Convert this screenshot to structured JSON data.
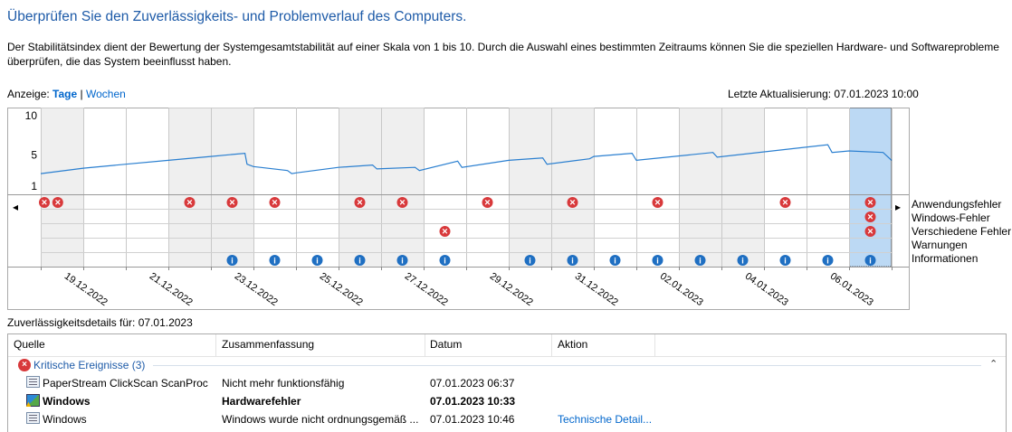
{
  "page": {
    "title": "Überprüfen Sie den Zuverlässigkeits- und Problemverlauf des Computers.",
    "description": "Der Stabilitätsindex dient der Bewertung der Systemgesamtstabilität auf einer Skala von 1 bis 10. Durch die Auswahl eines bestimmten Zeitraums können Sie die speziellen Hardware- und Softwareprobleme überprüfen, die das System beeinflusst haben."
  },
  "view": {
    "label": "Anzeige:",
    "days": "Tage",
    "separator": "|",
    "weeks": "Wochen",
    "last_update": "Letzte Aktualisierung: 07.01.2023 10:00"
  },
  "chart_data": {
    "type": "line",
    "title": "",
    "ylim": [
      1,
      10
    ],
    "y_ticks": [
      "10",
      "5",
      "1"
    ],
    "x_labels": [
      "19.12.2022",
      "21.12.2022",
      "23.12.2022",
      "25.12.2022",
      "27.12.2022",
      "29.12.2022",
      "31.12.2022",
      "02.01.2023",
      "04.01.2023",
      "06.01.2023"
    ],
    "days": 20,
    "selected_day_index": 19,
    "stability_index": [
      [
        0,
        2.6
      ],
      [
        1,
        3.3
      ],
      [
        2,
        3.8
      ],
      [
        3,
        4.3
      ],
      [
        4,
        4.8
      ],
      [
        4.8,
        5.2
      ],
      [
        4.85,
        3.8
      ],
      [
        5,
        3.5
      ],
      [
        5.8,
        3.0
      ],
      [
        5.9,
        2.6
      ],
      [
        6,
        2.7
      ],
      [
        7,
        3.4
      ],
      [
        7.8,
        3.7
      ],
      [
        7.9,
        3.2
      ],
      [
        8.8,
        3.4
      ],
      [
        8.9,
        3.0
      ],
      [
        9.8,
        4.2
      ],
      [
        9.9,
        3.4
      ],
      [
        11,
        4.3
      ],
      [
        11.8,
        4.6
      ],
      [
        11.9,
        3.8
      ],
      [
        12.9,
        4.5
      ],
      [
        13,
        4.8
      ],
      [
        13.9,
        5.2
      ],
      [
        14,
        4.3
      ],
      [
        15.8,
        5.3
      ],
      [
        15.9,
        4.7
      ],
      [
        18.5,
        6.3
      ],
      [
        18.6,
        5.3
      ],
      [
        19,
        5.5
      ],
      [
        19.8,
        5.3
      ],
      [
        20,
        4.3
      ]
    ],
    "rows": [
      "Anwendungsfehler",
      "Windows-Fehler",
      "Verschiedene Fehler",
      "Warnungen",
      "Informationen"
    ],
    "events": {
      "Anwendungsfehler": [
        0,
        0.4,
        3.5,
        4.5,
        5.5,
        7.5,
        8.5,
        10.5,
        12.5,
        14.5,
        17.5,
        19.5
      ],
      "Windows-Fehler": [
        19.5
      ],
      "Verschiedene Fehler": [
        9.5,
        19.5
      ],
      "Warnungen": [],
      "Informationen": [
        4.5,
        5.5,
        6.5,
        7.5,
        8.5,
        9.5,
        11.5,
        12.5,
        13.5,
        14.5,
        15.5,
        16.5,
        17.5,
        18.5,
        19.5
      ]
    }
  },
  "details": {
    "label": "Zuverlässigkeitsdetails für: 07.01.2023",
    "columns": [
      "Quelle",
      "Zusammenfassung",
      "Datum",
      "Aktion"
    ],
    "group": "Kritische Ereignisse (3)",
    "rows": [
      {
        "source": "PaperStream ClickScan ScanProc",
        "summary": "Nicht mehr funktionsfähig",
        "date": "07.01.2023 06:37",
        "action": "",
        "bold": false,
        "icon": "app-icon"
      },
      {
        "source": "Windows",
        "summary": "Hardwarefehler",
        "date": "07.01.2023 10:33",
        "action": "",
        "bold": true,
        "icon": "windows-icon"
      },
      {
        "source": "Windows",
        "summary": "Windows wurde nicht ordnungsgemäß ...",
        "date": "07.01.2023 10:46",
        "action": "Technische Detail...",
        "bold": false,
        "icon": "app-icon"
      }
    ]
  },
  "icons": {
    "error": "×",
    "info": "i",
    "left_arrow": "◂",
    "right_arrow": "▸",
    "collapse": "⌃",
    "sort": "⌃"
  },
  "colors": {
    "title": "#1e5ba8",
    "line": "#2a7fd0",
    "error": "#d8393b",
    "info": "#1f6fc2",
    "selected": "#bcd9f4",
    "shade": "#efefef",
    "link": "#0066cc"
  }
}
